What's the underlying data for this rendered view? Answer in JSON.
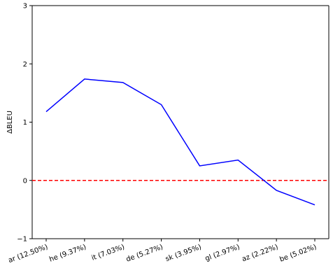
{
  "chart_data": {
    "type": "line",
    "title": "",
    "xlabel": "",
    "ylabel": "ΔBLEU",
    "categories": [
      "ar (12.50%)",
      "he (9.37%)",
      "it (7.03%)",
      "de (5.27%)",
      "sk (3.95%)",
      "gl (2.97%)",
      "az (2.22%)",
      "be (5.02%)"
    ],
    "series": [
      {
        "values": [
          1.18,
          1.74,
          1.68,
          1.3,
          0.25,
          0.35,
          -0.17,
          -0.42
        ],
        "color": "#0000ff"
      }
    ],
    "reference_line": {
      "y": 0,
      "color": "#ff0000",
      "style": "dashed"
    },
    "ylim": [
      -1,
      3
    ],
    "yticks": [
      -1,
      0,
      1,
      2,
      3
    ],
    "grid": false,
    "legend": "none"
  }
}
